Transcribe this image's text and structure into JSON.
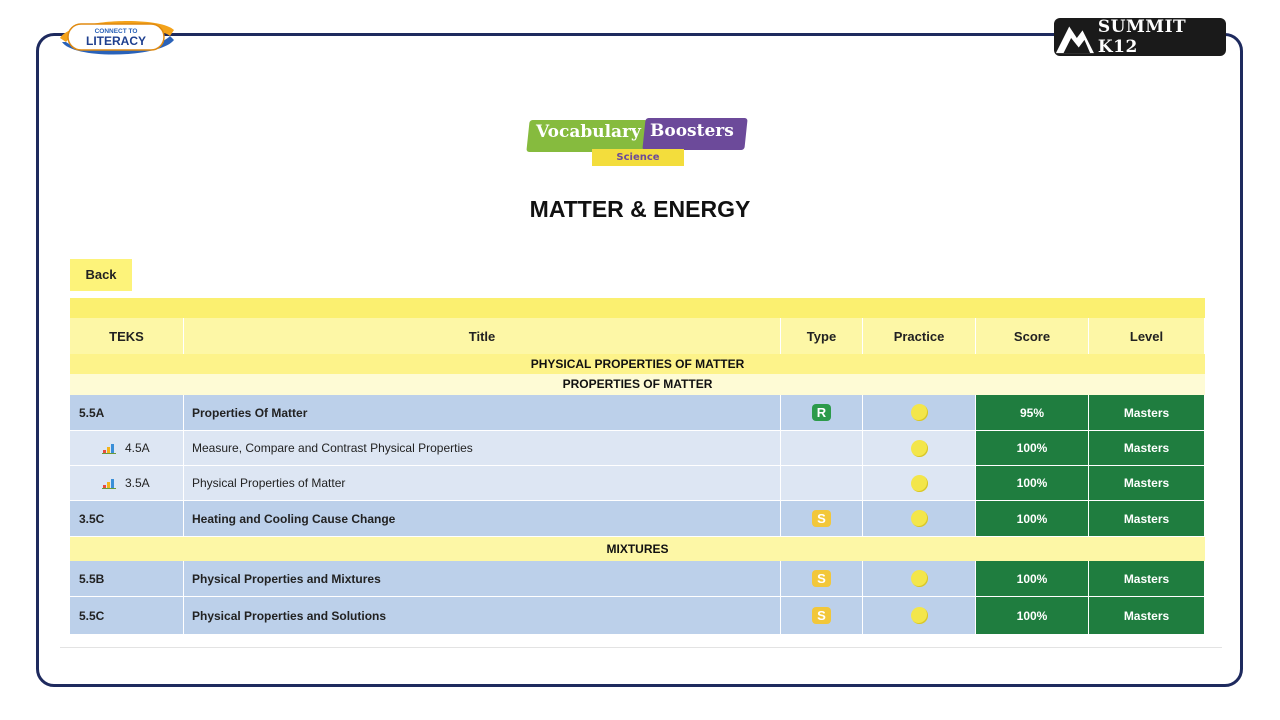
{
  "header": {
    "left_logo_text_top": "CONNECT TO",
    "left_logo_text_main": "LITERACY",
    "right_logo_text": "SUMMIT K12"
  },
  "product_logo": {
    "word1": "Vocabulary",
    "word2": "Boosters",
    "subject": "Science"
  },
  "page": {
    "title": "MATTER & ENERGY",
    "back_label": "Back"
  },
  "table": {
    "columns": [
      "TEKS",
      "Title",
      "Type",
      "Practice",
      "Score",
      "Level"
    ],
    "section": "PHYSICAL PROPERTIES OF MATTER",
    "groups": [
      {
        "name": "PROPERTIES OF MATTER",
        "rows": [
          {
            "teks": "5.5A",
            "title": "Properties Of Matter",
            "type": "R",
            "score": "95%",
            "level": "Masters",
            "sub": false
          },
          {
            "teks": "4.5A",
            "title": "Measure, Compare and Contrast Physical Properties",
            "type": "",
            "score": "100%",
            "level": "Masters",
            "sub": true
          },
          {
            "teks": "3.5A",
            "title": "Physical Properties of Matter",
            "type": "",
            "score": "100%",
            "level": "Masters",
            "sub": true
          },
          {
            "teks": "3.5C",
            "title": "Heating and Cooling Cause Change",
            "type": "S",
            "score": "100%",
            "level": "Masters",
            "sub": false
          }
        ]
      },
      {
        "name": "MIXTURES",
        "rows": [
          {
            "teks": "5.5B",
            "title": "Physical Properties and Mixtures",
            "type": "S",
            "score": "100%",
            "level": "Masters",
            "sub": false
          },
          {
            "teks": "5.5C",
            "title": "Physical Properties and Solutions",
            "type": "S",
            "score": "100%",
            "level": "Masters",
            "sub": false
          }
        ]
      }
    ]
  },
  "colors": {
    "frame": "#1e2a5e",
    "score_bg": "#1f7d3f",
    "header_yellow": "#fdf7a6",
    "row_main": "#bcd0ea",
    "row_sub": "#dde6f3"
  }
}
